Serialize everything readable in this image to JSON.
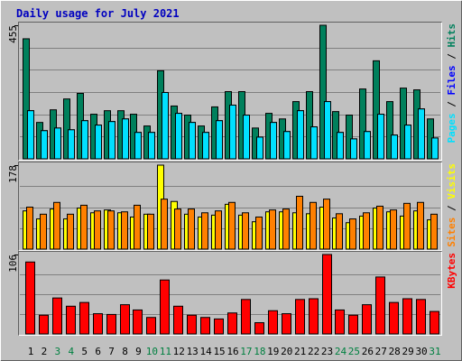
{
  "chart_data": [
    {
      "type": "bar",
      "title": "Daily usage for July 2021",
      "categories": [
        "1",
        "2",
        "3",
        "4",
        "5",
        "6",
        "7",
        "8",
        "9",
        "10",
        "11",
        "12",
        "13",
        "14",
        "15",
        "16",
        "17",
        "18",
        "19",
        "20",
        "21",
        "22",
        "23",
        "24",
        "25",
        "26",
        "27",
        "28",
        "29",
        "30",
        "31"
      ],
      "category_colors": [
        "#000000",
        "#000000",
        "#008040",
        "#008040",
        "#000000",
        "#000000",
        "#000000",
        "#000000",
        "#000000",
        "#008040",
        "#008040",
        "#000000",
        "#000000",
        "#000000",
        "#000000",
        "#000000",
        "#008040",
        "#008040",
        "#000000",
        "#000000",
        "#000000",
        "#000000",
        "#000000",
        "#008040",
        "#008040",
        "#000000",
        "#000000",
        "#000000",
        "#000000",
        "#000000",
        "#008040"
      ],
      "ylim": [
        0,
        455
      ],
      "yticks": [
        455
      ],
      "series": [
        {
          "name": "Hits",
          "color": "#00805c",
          "values": [
            409,
            124,
            167,
            204,
            223,
            152,
            164,
            164,
            152,
            112,
            300,
            180,
            149,
            112,
            177,
            229,
            229,
            105,
            155,
            136,
            195,
            229,
            455,
            161,
            149,
            238,
            334,
            195,
            241,
            235,
            136
          ]
        },
        {
          "name": "Files",
          "color": "#0000ff",
          "values": [
            164,
            96,
            105,
            99,
            130,
            115,
            127,
            136,
            90,
            90,
            226,
            155,
            124,
            90,
            130,
            183,
            149,
            74,
            124,
            93,
            164,
            109,
            195,
            90,
            68,
            93,
            152,
            81,
            115,
            170,
            71
          ]
        },
        {
          "name": "Pages",
          "color": "#00e0ff",
          "values": [
            164,
            96,
            105,
            99,
            130,
            115,
            127,
            136,
            90,
            90,
            226,
            155,
            124,
            90,
            130,
            183,
            149,
            74,
            124,
            93,
            164,
            109,
            195,
            90,
            68,
            93,
            152,
            81,
            115,
            170,
            71
          ]
        }
      ]
    },
    {
      "type": "bar",
      "ylim": [
        0,
        178
      ],
      "yticks": [
        178
      ],
      "series": [
        {
          "name": "Visits",
          "color": "#ffff00",
          "values": [
            81,
            64,
            85,
            64,
            87,
            77,
            83,
            77,
            68,
            74,
            178,
            101,
            74,
            68,
            72,
            95,
            72,
            58,
            79,
            79,
            77,
            75,
            89,
            66,
            56,
            70,
            87,
            79,
            70,
            81,
            62
          ]
        },
        {
          "name": "Sites",
          "color": "#ff8000",
          "values": [
            89,
            74,
            99,
            74,
            93,
            81,
            81,
            79,
            93,
            74,
            106,
            85,
            85,
            77,
            81,
            99,
            77,
            68,
            83,
            85,
            112,
            99,
            106,
            75,
            64,
            77,
            91,
            83,
            97,
            99,
            74
          ]
        }
      ]
    },
    {
      "type": "bar",
      "ylim": [
        0,
        106
      ],
      "yticks": [
        106
      ],
      "series": [
        {
          "name": "KBytes",
          "color": "#ff0000",
          "values": [
            96,
            25,
            48,
            37,
            42,
            27,
            26,
            39,
            32,
            22,
            72,
            37,
            25,
            22,
            20,
            28,
            46,
            15,
            31,
            27,
            46,
            47,
            106,
            32,
            25,
            39,
            76,
            42,
            47,
            46,
            30
          ]
        }
      ]
    }
  ]
}
